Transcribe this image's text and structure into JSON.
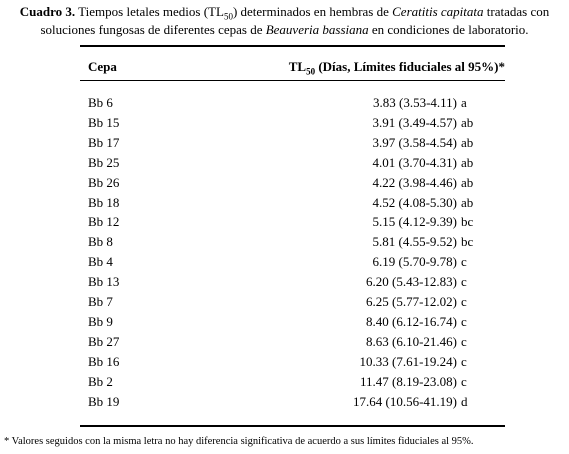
{
  "caption": {
    "label": "Cuadro 3.",
    "text1": " Tiempos letales medios (TL",
    "sub": "50",
    "text2": ") determinados en hembras de ",
    "species1": "Ceratitis capitata",
    "text3": " tratadas con",
    "text4": "soluciones fungosas de diferentes cepas de ",
    "species2": "Beauveria bassiana",
    "text5": " en condiciones de laboratorio."
  },
  "table": {
    "header": {
      "cepa": "Cepa",
      "tl": "TL",
      "sub": "50",
      "rest": " (Días, Límites fiduciales al 95%)*"
    },
    "rows": [
      [
        "Bb 6",
        "3.83 (3.53-4.11)",
        "a"
      ],
      [
        "Bb 15",
        "3.91 (3.49-4.57)",
        "ab"
      ],
      [
        "Bb 17",
        "3.97 (3.58-4.54)",
        "ab"
      ],
      [
        "Bb 25",
        "4.01 (3.70-4.31)",
        "ab"
      ],
      [
        "Bb 26",
        "4.22 (3.98-4.46)",
        "ab"
      ],
      [
        "Bb 18",
        "4.52 (4.08-5.30)",
        "ab"
      ],
      [
        "Bb 12",
        "5.15 (4.12-9.39)",
        "bc"
      ],
      [
        "Bb 8",
        "5.81 (4.55-9.52)",
        "bc"
      ],
      [
        "Bb 4",
        "6.19 (5.70-9.78)",
        "c"
      ],
      [
        "Bb 13",
        "6.20 (5.43-12.83)",
        "c"
      ],
      [
        "Bb 7",
        "6.25 (5.77-12.02)",
        "c"
      ],
      [
        "Bb 9",
        "8.40 (6.12-16.74)",
        "c"
      ],
      [
        "Bb 27",
        "8.63 (6.10-21.46)",
        "c"
      ],
      [
        "Bb 16",
        "10.33 (7.61-19.24)",
        "c"
      ],
      [
        "Bb 2",
        "11.47 (8.19-23.08)",
        "c"
      ],
      [
        "Bb 19",
        "17.64 (10.56-41.19)",
        "d"
      ]
    ]
  },
  "footnote": "* Valores seguidos con la misma letra no hay diferencia significativa de acuerdo a sus límites fiduciales al 95%."
}
